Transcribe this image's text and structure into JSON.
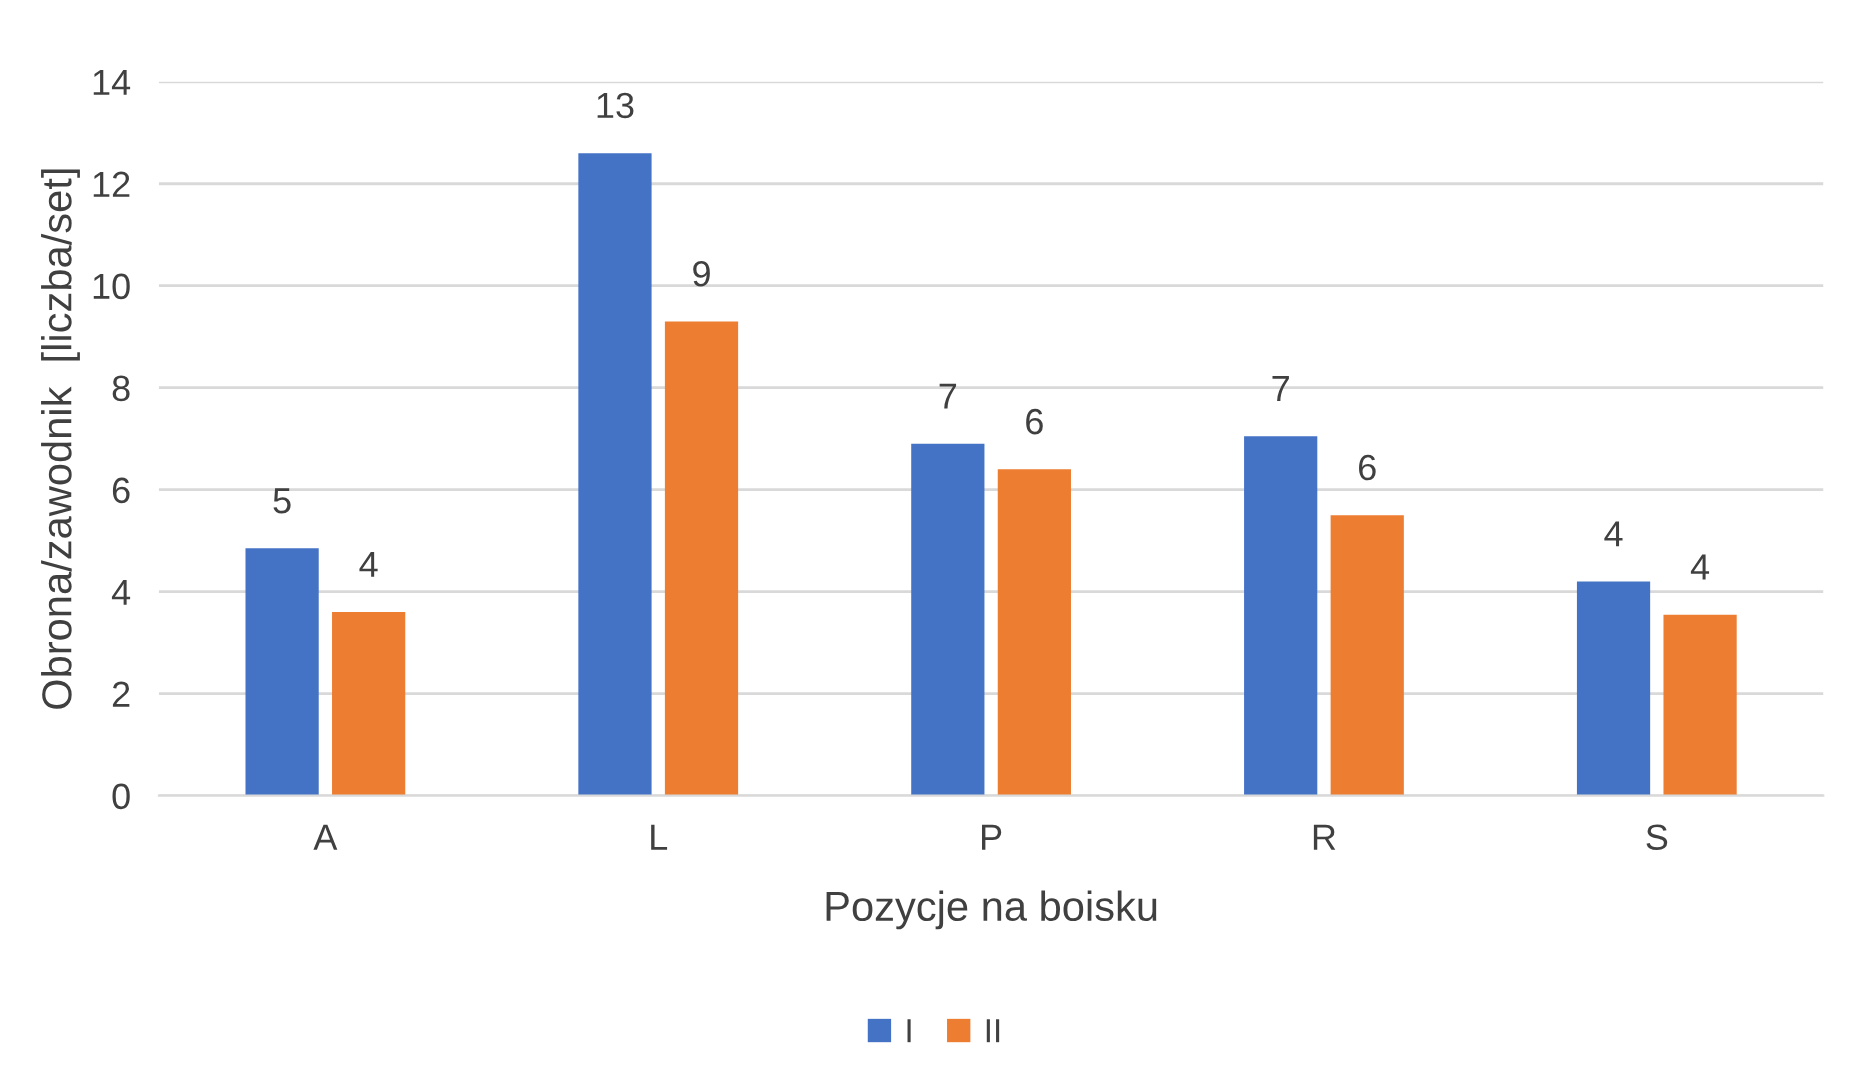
{
  "chart_data": {
    "type": "bar",
    "xlabel": "Pozycje na boisku",
    "ylabel": "Obrona/zawodnik  [liczba/set]",
    "categories": [
      "A",
      "L",
      "P",
      "R",
      "S"
    ],
    "series": [
      {
        "name": "I",
        "color": "#4472c4",
        "values": [
          4.85,
          12.6,
          6.9,
          7.05,
          4.2
        ],
        "value_labels": [
          "5",
          "13",
          "7",
          "7",
          "4"
        ]
      },
      {
        "name": "II",
        "color": "#ed7d31",
        "values": [
          3.6,
          9.3,
          6.4,
          5.5,
          3.55
        ],
        "value_labels": [
          "4",
          "9",
          "6",
          "6",
          "4"
        ]
      }
    ],
    "ylim": [
      0,
      14
    ],
    "yticks": [
      0,
      2,
      4,
      6,
      8,
      10,
      12,
      14
    ],
    "grid": "y",
    "legend": "bottom"
  }
}
